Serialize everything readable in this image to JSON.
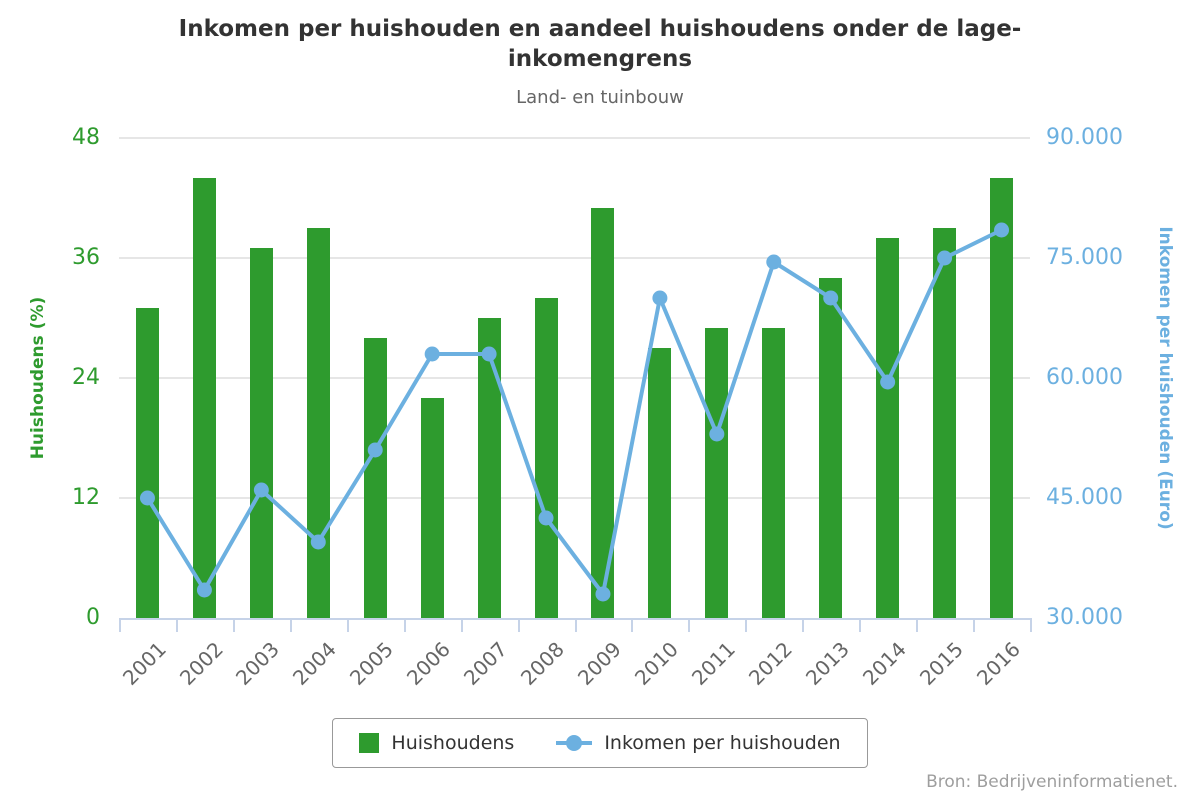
{
  "header": {
    "title": "Inkomen per huishouden en aandeel huishoudens onder de lage-inkomengrens",
    "subtitle": "Land- en tuinbouw"
  },
  "source": "Bron: Bedrijveninformatienet.",
  "legend": {
    "items": [
      {
        "label": "Huishoudens",
        "symbol": "green-square"
      },
      {
        "label": "Inkomen per huishouden",
        "symbol": "blue-line-dot"
      }
    ]
  },
  "colors": {
    "bar_green": "#2e9b2e",
    "line_blue": "#6cb0e0",
    "gridline": "#e6e6e6",
    "axis_line": "#c6d3e8",
    "title_text": "#333333",
    "subtitle_text": "#666666",
    "x_label_text": "#666666",
    "source_text": "#9e9e9e"
  },
  "chart_data": {
    "type": "bar+line",
    "categories": [
      "2001",
      "2002",
      "2003",
      "2004",
      "2005",
      "2006",
      "2007",
      "2008",
      "2009",
      "2010",
      "2011",
      "2012",
      "2013",
      "2014",
      "2015",
      "2016"
    ],
    "series": [
      {
        "name": "Huishoudens",
        "type": "bar",
        "yaxis": "left",
        "unit": "%",
        "values": [
          31,
          44,
          37,
          39,
          28,
          22,
          30,
          32,
          41,
          27,
          29,
          29,
          34,
          38,
          39,
          44
        ]
      },
      {
        "name": "Inkomen per huishouden",
        "type": "line",
        "yaxis": "right",
        "unit": "Euro",
        "values": [
          45000,
          33500,
          46000,
          39500,
          51000,
          63000,
          63000,
          42500,
          33000,
          70000,
          53000,
          74500,
          70000,
          59500,
          75000,
          78500
        ]
      }
    ],
    "yaxis_left": {
      "title": "Huishoudens (%)",
      "min": 0,
      "max": 48,
      "ticks": [
        0,
        12,
        24,
        36,
        48
      ]
    },
    "yaxis_right": {
      "title": "Inkomen per huishouden (Euro)",
      "min": 30000,
      "max": 90000,
      "ticks": [
        30000,
        45000,
        60000,
        75000,
        90000
      ],
      "tick_labels": [
        "30.000",
        "45.000",
        "60.000",
        "75.000",
        "90.000"
      ]
    },
    "grid": true,
    "legend_position": "bottom",
    "x_labels_rotation": -45
  }
}
